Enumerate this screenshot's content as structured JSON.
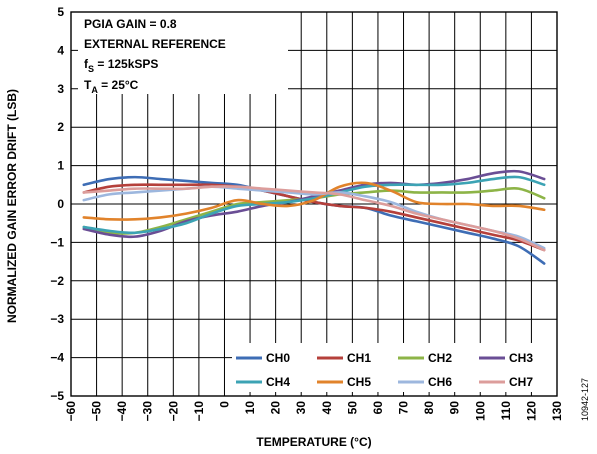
{
  "figure_id": "10942-127",
  "chart_data": {
    "type": "line",
    "title": "",
    "xlabel": "TEMPERATURE (°C)",
    "ylabel": "NORMALIZED GAIN ERROR DRIFT (LSB)",
    "xlim": [
      -60,
      130
    ],
    "ylim": [
      -5,
      5
    ],
    "xticks": [
      -60,
      -50,
      -40,
      -30,
      -20,
      -10,
      0,
      10,
      20,
      30,
      40,
      50,
      60,
      70,
      80,
      90,
      100,
      110,
      120,
      130
    ],
    "yticks": [
      -5,
      -4,
      -3,
      -2,
      -1,
      0,
      1,
      2,
      3,
      4,
      5
    ],
    "grid": true,
    "legend_position": "bottom-right",
    "annotations": [
      {
        "text": "PGIA GAIN = 0.8"
      },
      {
        "text": "EXTERNAL REFERENCE"
      },
      {
        "text": "f",
        "subscript": "S",
        "suffix": " = 125kSPS"
      },
      {
        "text": "T",
        "subscript": "A",
        "suffix": " = 25°C"
      }
    ],
    "x": [
      -55,
      -45,
      -35,
      -25,
      -15,
      -5,
      5,
      15,
      25,
      35,
      45,
      55,
      65,
      75,
      85,
      95,
      105,
      115,
      125
    ],
    "series": [
      {
        "name": "CH0",
        "color": "#3e6db5",
        "values": [
          0.5,
          0.65,
          0.7,
          0.65,
          0.6,
          0.55,
          0.5,
          0.35,
          0.2,
          0.05,
          -0.05,
          -0.1,
          -0.3,
          -0.45,
          -0.6,
          -0.75,
          -0.9,
          -1.1,
          -1.55
        ]
      },
      {
        "name": "CH1",
        "color": "#b5403b",
        "values": [
          0.3,
          0.45,
          0.5,
          0.5,
          0.5,
          0.5,
          0.45,
          0.35,
          0.2,
          0.05,
          -0.05,
          -0.1,
          -0.2,
          -0.35,
          -0.5,
          -0.65,
          -0.8,
          -0.95,
          -1.2
        ]
      },
      {
        "name": "CH2",
        "color": "#8db447",
        "values": [
          -0.6,
          -0.75,
          -0.75,
          -0.6,
          -0.4,
          -0.2,
          0.0,
          0.05,
          0.1,
          0.15,
          0.25,
          0.3,
          0.35,
          0.3,
          0.3,
          0.3,
          0.35,
          0.4,
          0.15
        ]
      },
      {
        "name": "CH3",
        "color": "#6a4e95",
        "values": [
          -0.65,
          -0.8,
          -0.85,
          -0.7,
          -0.45,
          -0.3,
          -0.2,
          -0.05,
          0.05,
          0.2,
          0.35,
          0.5,
          0.55,
          0.5,
          0.55,
          0.65,
          0.8,
          0.85,
          0.65
        ]
      },
      {
        "name": "CH4",
        "color": "#3ca3b4",
        "values": [
          -0.6,
          -0.7,
          -0.75,
          -0.65,
          -0.5,
          -0.25,
          -0.05,
          0.0,
          0.05,
          0.15,
          0.3,
          0.45,
          0.5,
          0.5,
          0.5,
          0.55,
          0.65,
          0.7,
          0.5
        ]
      },
      {
        "name": "CH5",
        "color": "#e1832b",
        "values": [
          -0.35,
          -0.4,
          -0.4,
          -0.35,
          -0.25,
          -0.1,
          0.1,
          0.0,
          -0.05,
          0.1,
          0.45,
          0.55,
          0.35,
          0.05,
          0.0,
          0.0,
          -0.05,
          -0.05,
          -0.15
        ]
      },
      {
        "name": "CH6",
        "color": "#9db7de",
        "values": [
          0.1,
          0.25,
          0.3,
          0.35,
          0.4,
          0.45,
          0.4,
          0.35,
          0.3,
          0.25,
          0.3,
          0.2,
          0.05,
          -0.2,
          -0.4,
          -0.55,
          -0.7,
          -0.85,
          -1.15
        ]
      },
      {
        "name": "CH7",
        "color": "#dc9d9b",
        "values": [
          0.3,
          0.35,
          0.4,
          0.4,
          0.4,
          0.45,
          0.45,
          0.4,
          0.35,
          0.3,
          0.25,
          0.1,
          -0.05,
          -0.25,
          -0.4,
          -0.55,
          -0.7,
          -0.9,
          -1.2
        ]
      }
    ]
  }
}
